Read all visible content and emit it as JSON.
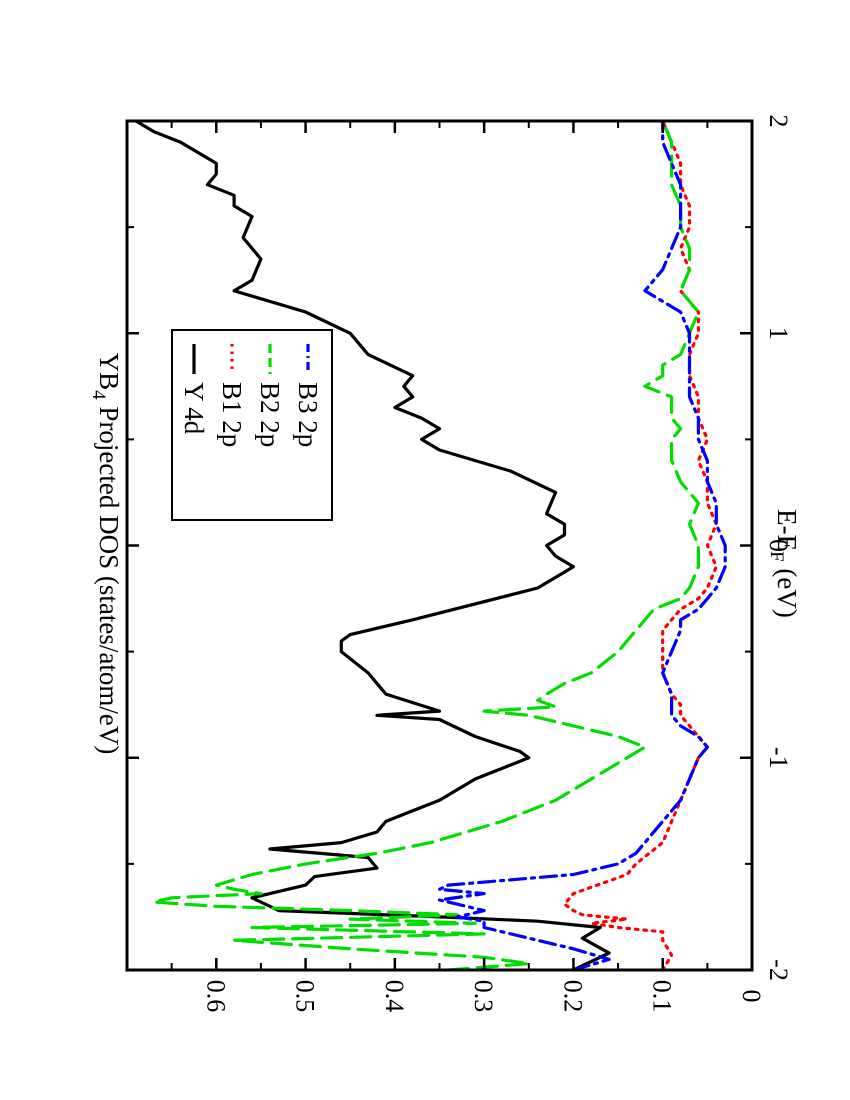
{
  "chart_data": {
    "type": "line",
    "orientation": "rotated-90-clockwise",
    "xlabel_main": "E-E",
    "xlabel_sub": "F",
    "xlabel_tail": " (eV)",
    "ylabel_pre": "YB",
    "ylabel_sub": "4",
    "ylabel_post": " Projected DOS (states/atom/eV)",
    "xlim": [
      -2,
      2
    ],
    "ylim": [
      0,
      0.7
    ],
    "x_ticks": [
      -2,
      -1,
      0,
      1,
      2
    ],
    "x_tick_labels": [
      "-2",
      "-1",
      "0",
      "1",
      "2"
    ],
    "y_ticks": [
      0,
      0.1,
      0.2,
      0.3,
      0.4,
      0.5,
      0.6
    ],
    "y_tick_labels": [
      "0",
      "0.1",
      "0.2",
      "0.3",
      "0.4",
      "0.5",
      "0.6"
    ],
    "legend_position": "top-left",
    "series": [
      {
        "name": "Y 4d",
        "color": "#000000",
        "dash": "solid",
        "x": [
          -2.0,
          -1.92,
          -1.85,
          -1.8,
          -1.77,
          -1.75,
          -1.72,
          -1.66,
          -1.6,
          -1.56,
          -1.52,
          -1.47,
          -1.43,
          -1.4,
          -1.35,
          -1.3,
          -1.25,
          -1.2,
          -1.1,
          -1.0,
          -0.97,
          -0.9,
          -0.82,
          -0.8,
          -0.78,
          -0.74,
          -0.7,
          -0.6,
          -0.5,
          -0.45,
          -0.42,
          -0.35,
          -0.2,
          -0.1,
          -0.05,
          0.0,
          0.05,
          0.1,
          0.15,
          0.25,
          0.35,
          0.45,
          0.5,
          0.55,
          0.6,
          0.65,
          0.7,
          0.75,
          0.8,
          0.9,
          1.0,
          1.1,
          1.2,
          1.25,
          1.35,
          1.45,
          1.55,
          1.6,
          1.65,
          1.7,
          1.75,
          1.8,
          1.85,
          1.9,
          1.95,
          2.0
        ],
        "y": [
          0.2,
          0.16,
          0.19,
          0.17,
          0.24,
          0.35,
          0.53,
          0.56,
          0.5,
          0.49,
          0.42,
          0.43,
          0.54,
          0.46,
          0.42,
          0.41,
          0.38,
          0.35,
          0.31,
          0.25,
          0.26,
          0.31,
          0.35,
          0.42,
          0.35,
          0.38,
          0.41,
          0.43,
          0.46,
          0.46,
          0.45,
          0.38,
          0.24,
          0.2,
          0.22,
          0.23,
          0.21,
          0.21,
          0.23,
          0.22,
          0.27,
          0.35,
          0.37,
          0.35,
          0.37,
          0.4,
          0.38,
          0.39,
          0.38,
          0.43,
          0.45,
          0.5,
          0.58,
          0.56,
          0.55,
          0.57,
          0.56,
          0.58,
          0.58,
          0.61,
          0.6,
          0.6,
          0.62,
          0.64,
          0.67,
          0.69
        ]
      },
      {
        "name": "B1 2p",
        "color": "#ff0000",
        "dash": "dotted",
        "x": [
          -2.0,
          -1.93,
          -1.86,
          -1.82,
          -1.8,
          -1.78,
          -1.76,
          -1.74,
          -1.72,
          -1.69,
          -1.64,
          -1.58,
          -1.55,
          -1.5,
          -1.4,
          -1.3,
          -1.2,
          -1.1,
          -1.0,
          -0.95,
          -0.9,
          -0.85,
          -0.8,
          -0.75,
          -0.7,
          -0.6,
          -0.5,
          -0.4,
          -0.35,
          -0.3,
          -0.25,
          -0.2,
          -0.1,
          0.0,
          0.1,
          0.2,
          0.3,
          0.4,
          0.5,
          0.6,
          0.7,
          0.8,
          0.9,
          1.0,
          1.1,
          1.2,
          1.3,
          1.4,
          1.5,
          1.6,
          1.7,
          1.8,
          1.9,
          2.0
        ],
        "y": [
          0.1,
          0.09,
          0.1,
          0.1,
          0.15,
          0.18,
          0.14,
          0.19,
          0.2,
          0.21,
          0.2,
          0.16,
          0.14,
          0.13,
          0.1,
          0.09,
          0.08,
          0.07,
          0.06,
          0.05,
          0.06,
          0.07,
          0.08,
          0.08,
          0.09,
          0.1,
          0.1,
          0.1,
          0.09,
          0.08,
          0.06,
          0.05,
          0.04,
          0.05,
          0.04,
          0.05,
          0.05,
          0.06,
          0.05,
          0.06,
          0.06,
          0.07,
          0.07,
          0.06,
          0.06,
          0.08,
          0.07,
          0.08,
          0.07,
          0.07,
          0.08,
          0.08,
          0.09,
          0.1
        ]
      },
      {
        "name": "B2 2p",
        "color": "#00dd00",
        "dash": "dashed",
        "x": [
          -2.0,
          -1.97,
          -1.94,
          -1.9,
          -1.86,
          -1.83,
          -1.8,
          -1.78,
          -1.76,
          -1.74,
          -1.72,
          -1.7,
          -1.68,
          -1.66,
          -1.64,
          -1.62,
          -1.6,
          -1.55,
          -1.5,
          -1.45,
          -1.4,
          -1.3,
          -1.2,
          -1.1,
          -1.0,
          -0.95,
          -0.9,
          -0.85,
          -0.8,
          -0.78,
          -0.76,
          -0.73,
          -0.7,
          -0.65,
          -0.6,
          -0.5,
          -0.45,
          -0.4,
          -0.35,
          -0.3,
          -0.25,
          -0.2,
          -0.1,
          0.0,
          0.1,
          0.2,
          0.3,
          0.4,
          0.5,
          0.55,
          0.6,
          0.7,
          0.75,
          0.8,
          0.85,
          0.9,
          1.0,
          1.1,
          1.2,
          1.3,
          1.4,
          1.5,
          1.6,
          1.7,
          1.8,
          1.9,
          2.0
        ],
        "y": [
          0.34,
          0.25,
          0.3,
          0.45,
          0.58,
          0.3,
          0.56,
          0.31,
          0.45,
          0.33,
          0.45,
          0.6,
          0.67,
          0.65,
          0.55,
          0.58,
          0.6,
          0.56,
          0.5,
          0.42,
          0.36,
          0.28,
          0.22,
          0.18,
          0.14,
          0.12,
          0.15,
          0.2,
          0.25,
          0.3,
          0.22,
          0.24,
          0.23,
          0.21,
          0.18,
          0.15,
          0.14,
          0.13,
          0.12,
          0.11,
          0.08,
          0.07,
          0.06,
          0.06,
          0.07,
          0.06,
          0.08,
          0.09,
          0.09,
          0.08,
          0.09,
          0.09,
          0.12,
          0.1,
          0.1,
          0.08,
          0.07,
          0.06,
          0.08,
          0.07,
          0.07,
          0.08,
          0.08,
          0.09,
          0.09,
          0.09,
          0.1
        ]
      },
      {
        "name": "B3 2p",
        "color": "#0000ff",
        "dash": "dashdot",
        "x": [
          -2.0,
          -1.95,
          -1.9,
          -1.85,
          -1.8,
          -1.77,
          -1.75,
          -1.72,
          -1.7,
          -1.67,
          -1.64,
          -1.62,
          -1.6,
          -1.55,
          -1.5,
          -1.45,
          -1.4,
          -1.3,
          -1.2,
          -1.1,
          -1.0,
          -0.95,
          -0.9,
          -0.85,
          -0.8,
          -0.7,
          -0.6,
          -0.5,
          -0.4,
          -0.35,
          -0.3,
          -0.25,
          -0.2,
          -0.1,
          0.0,
          0.1,
          0.2,
          0.3,
          0.4,
          0.5,
          0.6,
          0.7,
          0.8,
          0.9,
          1.0,
          1.1,
          1.2,
          1.3,
          1.4,
          1.5,
          1.6,
          1.7,
          1.8,
          1.9,
          2.0
        ],
        "y": [
          0.2,
          0.16,
          0.2,
          0.25,
          0.3,
          0.3,
          0.33,
          0.3,
          0.32,
          0.35,
          0.3,
          0.35,
          0.34,
          0.2,
          0.15,
          0.13,
          0.12,
          0.1,
          0.08,
          0.07,
          0.06,
          0.05,
          0.06,
          0.08,
          0.09,
          0.09,
          0.1,
          0.09,
          0.08,
          0.08,
          0.06,
          0.05,
          0.04,
          0.03,
          0.03,
          0.04,
          0.04,
          0.05,
          0.05,
          0.06,
          0.06,
          0.07,
          0.07,
          0.07,
          0.07,
          0.08,
          0.12,
          0.1,
          0.09,
          0.08,
          0.08,
          0.08,
          0.09,
          0.1,
          0.1
        ]
      }
    ]
  }
}
